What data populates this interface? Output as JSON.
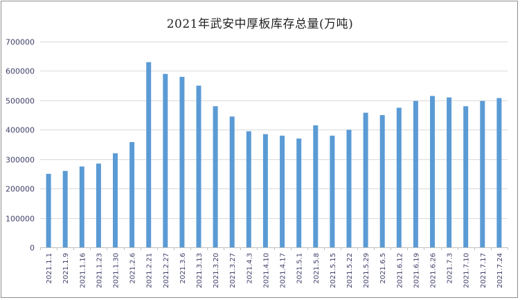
{
  "chart_data": {
    "type": "bar",
    "title": "2021年武安中厚板库存总量(万吨)",
    "xlabel": "",
    "ylabel": "",
    "ylim": [
      0,
      700000
    ],
    "yticks": [
      0,
      100000,
      200000,
      300000,
      400000,
      500000,
      600000,
      700000
    ],
    "ytick_labels": [
      "0",
      "100000",
      "200000",
      "300000",
      "400000",
      "500000",
      "600000",
      "700000"
    ],
    "grid": true,
    "legend": "none",
    "bar_color": "#5b9bd5",
    "categories": [
      "2021.1.1",
      "2021.1.9",
      "2021.1.16",
      "2021.1.23",
      "2021.1.30",
      "2021.2.6",
      "2021.2.21",
      "2021.2.27",
      "2021.3.6",
      "2021.3.13",
      "2021.3.20",
      "2021.3.27",
      "2021.4.3",
      "2021.4.10",
      "2021.4.17",
      "2021.5.1",
      "2021.5.8",
      "2021.5.15",
      "2021.5.22",
      "2021.5.29",
      "2021.6.5",
      "2021.6.12",
      "2021.6.19",
      "2021.6.26",
      "2021.7.3",
      "2021.7.10",
      "2021.7.17",
      "2021.7.24"
    ],
    "values": [
      250000,
      260000,
      275000,
      285000,
      320000,
      358000,
      630000,
      590000,
      580000,
      550000,
      480000,
      445000,
      395000,
      385000,
      380000,
      370000,
      415000,
      380000,
      400000,
      458000,
      450000,
      475000,
      498000,
      515000,
      510000,
      480000,
      498000,
      508000
    ]
  }
}
